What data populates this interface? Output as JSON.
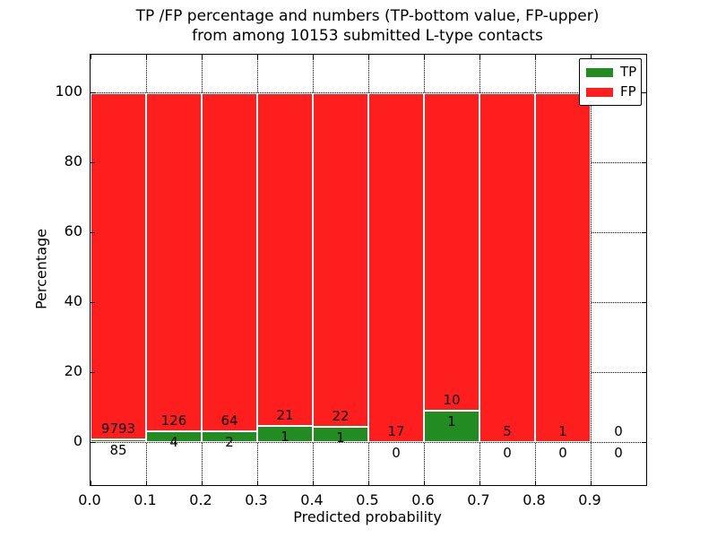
{
  "figure": {
    "title_line1": "TP /FP percentage and numbers (TP-bottom value, FP-upper)",
    "title_line2": "from among 10153 submitted L-type contacts"
  },
  "chart_data": {
    "type": "bar",
    "stacked": true,
    "title": "TP /FP percentage and numbers (TP-bottom value, FP-upper) from among 10153 submitted L-type contacts",
    "xlabel": "Predicted probability",
    "ylabel": "Percentage",
    "x_ticks": [
      "0.0",
      "0.1",
      "0.2",
      "0.3",
      "0.4",
      "0.5",
      "0.6",
      "0.7",
      "0.8",
      "0.9"
    ],
    "y_ticks": [
      0,
      20,
      40,
      60,
      80,
      100
    ],
    "xlim": [
      0.0,
      1.0
    ],
    "ylim_display": [
      -12,
      112
    ],
    "y_unit": "percent",
    "grid": {
      "visible": true,
      "linestyle": "dotted",
      "color": "#000000"
    },
    "legend": {
      "position": "upper right"
    },
    "series": [
      {
        "name": "TP",
        "color": "#228b22"
      },
      {
        "name": "FP",
        "color": "#ff1e1e"
      }
    ],
    "bins": [
      {
        "range": [
          0.0,
          0.1
        ],
        "TP": 85,
        "FP": 9793
      },
      {
        "range": [
          0.1,
          0.2
        ],
        "TP": 4,
        "FP": 126
      },
      {
        "range": [
          0.2,
          0.3
        ],
        "TP": 2,
        "FP": 64
      },
      {
        "range": [
          0.3,
          0.4
        ],
        "TP": 1,
        "FP": 21
      },
      {
        "range": [
          0.4,
          0.5
        ],
        "TP": 1,
        "FP": 22
      },
      {
        "range": [
          0.5,
          0.6
        ],
        "TP": 0,
        "FP": 17
      },
      {
        "range": [
          0.6,
          0.7
        ],
        "TP": 1,
        "FP": 10
      },
      {
        "range": [
          0.7,
          0.8
        ],
        "TP": 0,
        "FP": 5
      },
      {
        "range": [
          0.8,
          0.9
        ],
        "TP": 0,
        "FP": 1
      },
      {
        "range": [
          0.9,
          1.0
        ],
        "TP": 0,
        "FP": 0
      }
    ],
    "label_note": "TP count printed below green top, FP count printed above green top"
  }
}
